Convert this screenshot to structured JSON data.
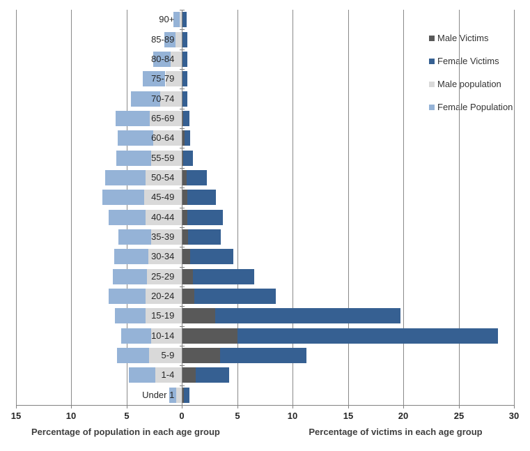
{
  "chart_data": {
    "type": "bar",
    "orientation": "horizontal-diverging",
    "title": "",
    "categories": [
      "90+",
      "85-89",
      "80-84",
      "75-79",
      "70-74",
      "65-69",
      "60-64",
      "55-59",
      "50-54",
      "45-49",
      "40-44",
      "35-39",
      "30-34",
      "25-29",
      "20-24",
      "15-19",
      "10-14",
      "5-9",
      "1-4",
      "Under 1"
    ],
    "series": [
      {
        "name": "Male Victims",
        "side": "right",
        "stack_order": 1,
        "color": "#595959",
        "values": [
          0,
          0,
          0,
          0,
          0,
          0.05,
          0.15,
          0.05,
          0.35,
          0.4,
          0.45,
          0.5,
          0.65,
          0.9,
          1.05,
          2.95,
          4.95,
          3.4,
          1.2,
          0.1
        ]
      },
      {
        "name": "Female Victims",
        "side": "right",
        "stack_order": 2,
        "color": "#366092",
        "values": [
          0.35,
          0.45,
          0.4,
          0.45,
          0.45,
          0.55,
          0.55,
          0.9,
          1.85,
          2.6,
          3.2,
          2.95,
          3.95,
          5.55,
          7.35,
          16.75,
          23.55,
          7.8,
          3.0,
          0.5
        ]
      },
      {
        "name": "Male population",
        "side": "left",
        "stack_order": 1,
        "color": "#D9D9D9",
        "values": [
          0.2,
          0.6,
          1.0,
          1.5,
          2.0,
          2.9,
          2.6,
          2.8,
          3.3,
          3.45,
          3.3,
          2.8,
          3.05,
          3.15,
          3.3,
          3.3,
          2.8,
          3.0,
          2.4,
          0.5
        ]
      },
      {
        "name": "Female Population",
        "side": "left",
        "stack_order": 2,
        "color": "#95B3D7",
        "values": [
          0.6,
          1.0,
          1.6,
          2.05,
          2.6,
          3.1,
          3.2,
          3.15,
          3.65,
          3.75,
          3.3,
          2.95,
          3.1,
          3.1,
          3.35,
          2.75,
          2.7,
          2.85,
          2.4,
          0.65
        ]
      }
    ],
    "xlim": [
      -15,
      30
    ],
    "x_ticks": [
      {
        "value": -15,
        "label": "15"
      },
      {
        "value": -10,
        "label": "10"
      },
      {
        "value": -5,
        "label": "5"
      },
      {
        "value": 0,
        "label": "0"
      },
      {
        "value": 5,
        "label": "5"
      },
      {
        "value": 10,
        "label": "10"
      },
      {
        "value": 15,
        "label": "15"
      },
      {
        "value": 20,
        "label": "20"
      },
      {
        "value": 25,
        "label": "25"
      },
      {
        "value": 30,
        "label": "30"
      }
    ],
    "axis_titles": {
      "left": "Percentage of population in each age group",
      "right": "Percentage of victims in each age group"
    },
    "legend": {
      "position": "top-right",
      "entries": [
        "Male Victims",
        "Female Victims",
        "Male population",
        "Female Population"
      ]
    },
    "grid": "vertical",
    "colors": {
      "male_victims": "#595959",
      "female_victims": "#366092",
      "male_population": "#D9D9D9",
      "female_population": "#95B3D7",
      "gridline": "#898989",
      "axis": "#808080",
      "tick_label": "#262626",
      "axis_title": "#3f3f3f"
    }
  }
}
